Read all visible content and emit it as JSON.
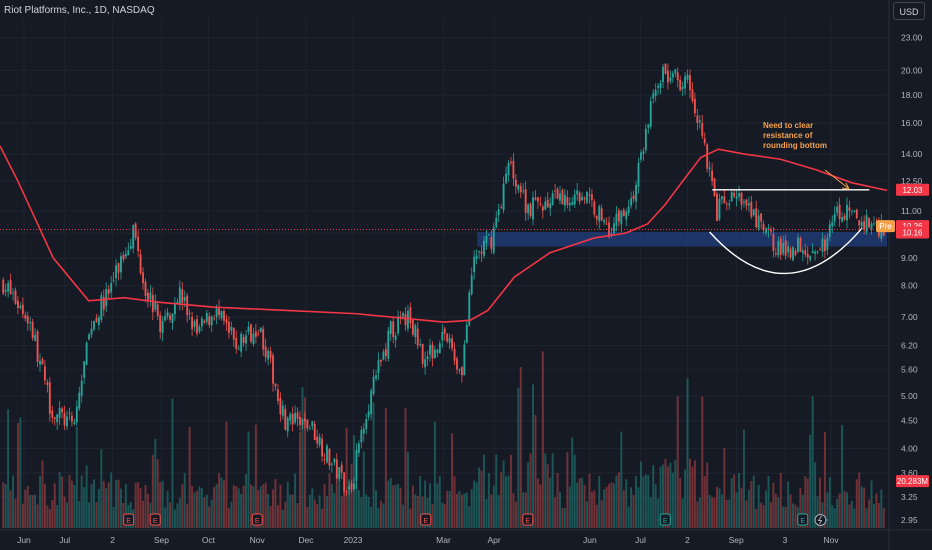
{
  "header": {
    "title": "Riot Platforms, Inc., 1D, NASDAQ",
    "currency": "USD"
  },
  "colors": {
    "background": "#161a25",
    "up": "#26a69a",
    "down": "#ef5350",
    "ma": "#f23645",
    "resistance": "#ffffff",
    "support_zone": "#1e3a73",
    "annotation": "#f7a24a",
    "pre_badge": "#f7a24a"
  },
  "chart_data": {
    "type": "candlestick",
    "y_scale": "log",
    "ylim": [
      2.85,
      25.0
    ],
    "y_ticks": [
      "23.00",
      "20.00",
      "18.00",
      "16.00",
      "14.00",
      "12.50",
      "11.00",
      "10.00",
      "9.00",
      "8.00",
      "7.00",
      "6.20",
      "5.60",
      "5.00",
      "4.50",
      "4.00",
      "3.60",
      "3.25",
      "2.95"
    ],
    "x_ticks": [
      "Jun",
      "Jul",
      "2",
      "Sep",
      "Oct",
      "Nov",
      "Dec",
      "2023",
      "Mar",
      "Apr",
      "Jun",
      "Jul",
      "2",
      "Sep",
      "3",
      "Nov"
    ],
    "price_segments": [
      {
        "t": 0,
        "close": 8.1
      },
      {
        "t": 0.03,
        "close": 6.9
      },
      {
        "t": 0.055,
        "close": 4.7
      },
      {
        "t": 0.08,
        "close": 4.4
      },
      {
        "t": 0.1,
        "close": 6.8
      },
      {
        "t": 0.12,
        "close": 7.8
      },
      {
        "t": 0.148,
        "close": 10.2
      },
      {
        "t": 0.16,
        "close": 8.1
      },
      {
        "t": 0.18,
        "close": 6.7
      },
      {
        "t": 0.2,
        "close": 7.8
      },
      {
        "t": 0.22,
        "close": 6.5
      },
      {
        "t": 0.24,
        "close": 7.2
      },
      {
        "t": 0.265,
        "close": 6.2
      },
      {
        "t": 0.29,
        "close": 6.8
      },
      {
        "t": 0.32,
        "close": 4.5
      },
      {
        "t": 0.35,
        "close": 4.4
      },
      {
        "t": 0.375,
        "close": 3.7
      },
      {
        "t": 0.395,
        "close": 3.35
      },
      {
        "t": 0.41,
        "close": 4.6
      },
      {
        "t": 0.44,
        "close": 6.6
      },
      {
        "t": 0.46,
        "close": 7.0
      },
      {
        "t": 0.48,
        "close": 5.8
      },
      {
        "t": 0.5,
        "close": 6.6
      },
      {
        "t": 0.52,
        "close": 5.5
      },
      {
        "t": 0.535,
        "close": 9.0
      },
      {
        "t": 0.555,
        "close": 9.8
      },
      {
        "t": 0.575,
        "close": 13.5
      },
      {
        "t": 0.595,
        "close": 11.2
      },
      {
        "t": 0.63,
        "close": 11.5
      },
      {
        "t": 0.66,
        "close": 11.8
      },
      {
        "t": 0.69,
        "close": 10.2
      },
      {
        "t": 0.715,
        "close": 11.6
      },
      {
        "t": 0.735,
        "close": 17.0
      },
      {
        "t": 0.745,
        "close": 19.7
      },
      {
        "t": 0.78,
        "close": 19.0
      },
      {
        "t": 0.795,
        "close": 15.0
      },
      {
        "t": 0.81,
        "close": 11.0
      },
      {
        "t": 0.83,
        "close": 11.8
      },
      {
        "t": 0.86,
        "close": 10.3
      },
      {
        "t": 0.885,
        "close": 9.2
      },
      {
        "t": 0.905,
        "close": 9.6
      },
      {
        "t": 0.925,
        "close": 9.1
      },
      {
        "t": 0.95,
        "close": 11.0
      },
      {
        "t": 0.975,
        "close": 10.5
      },
      {
        "t": 1.0,
        "close": 10.26
      }
    ],
    "moving_average": [
      {
        "t": 0,
        "value": 14.5
      },
      {
        "t": 0.02,
        "value": 12.5
      },
      {
        "t": 0.06,
        "value": 9.0
      },
      {
        "t": 0.1,
        "value": 7.5
      },
      {
        "t": 0.14,
        "value": 7.6
      },
      {
        "t": 0.18,
        "value": 7.45
      },
      {
        "t": 0.24,
        "value": 7.3
      },
      {
        "t": 0.32,
        "value": 7.2
      },
      {
        "t": 0.4,
        "value": 7.1
      },
      {
        "t": 0.44,
        "value": 7.0
      },
      {
        "t": 0.5,
        "value": 6.85
      },
      {
        "t": 0.53,
        "value": 6.9
      },
      {
        "t": 0.55,
        "value": 7.2
      },
      {
        "t": 0.58,
        "value": 8.3
      },
      {
        "t": 0.62,
        "value": 9.2
      },
      {
        "t": 0.67,
        "value": 9.8
      },
      {
        "t": 0.705,
        "value": 10.0
      },
      {
        "t": 0.73,
        "value": 10.4
      },
      {
        "t": 0.75,
        "value": 11.3
      },
      {
        "t": 0.77,
        "value": 12.5
      },
      {
        "t": 0.79,
        "value": 13.8
      },
      {
        "t": 0.81,
        "value": 14.3
      },
      {
        "t": 0.84,
        "value": 14.0
      },
      {
        "t": 0.88,
        "value": 13.7
      },
      {
        "t": 0.92,
        "value": 13.1
      },
      {
        "t": 0.96,
        "value": 12.4
      },
      {
        "t": 1.0,
        "value": 12.0
      }
    ],
    "resistance_level": 12.03,
    "support_zone": [
      9.45,
      10.05
    ],
    "current_price_line": 10.16,
    "price_tags": [
      {
        "label": "12.03",
        "value": 12.03,
        "color": "#f23645"
      },
      {
        "label": "10.26",
        "value": 10.26,
        "color": "#f23645",
        "prefix": "Pre"
      },
      {
        "label": "10.16",
        "value": 10.16,
        "color": "#f23645"
      },
      {
        "label": "20.283M",
        "value": 3.48,
        "color": "#f23645"
      }
    ],
    "annotation": {
      "lines": [
        "Need to clear",
        "resistance of",
        "rounding bottom"
      ]
    },
    "volume_label": "20.283M",
    "event_markers": [
      {
        "t": 0.145,
        "type": "E"
      },
      {
        "t": 0.175,
        "type": "E"
      },
      {
        "t": 0.29,
        "type": "E"
      },
      {
        "t": 0.48,
        "type": "E"
      },
      {
        "t": 0.595,
        "type": "E"
      },
      {
        "t": 0.75,
        "type": "E"
      },
      {
        "t": 0.905,
        "type": "E"
      },
      {
        "t": 0.925,
        "type": "D"
      }
    ]
  }
}
